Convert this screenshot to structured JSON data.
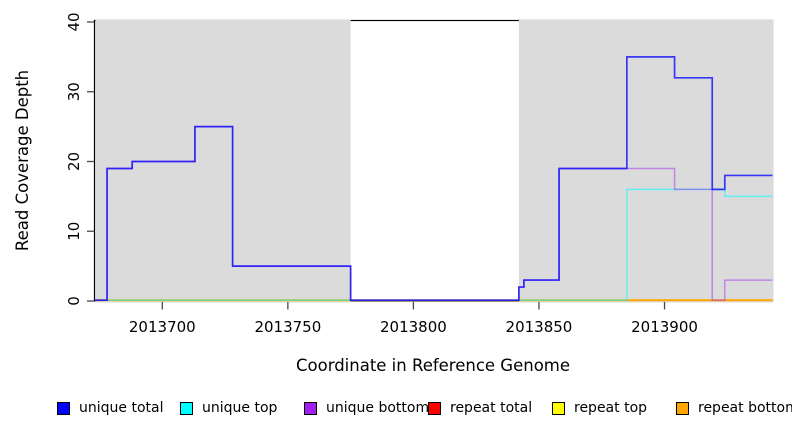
{
  "chart_data": {
    "type": "line",
    "subtype": "step-coverage-plot",
    "title": "",
    "xlabel": "Coordinate in Reference Genome",
    "ylabel": "Read Coverage Depth",
    "xlim": [
      2013673,
      2013943
    ],
    "ylim": [
      0,
      40
    ],
    "x_ticks": [
      "2013700",
      "2013750",
      "2013800",
      "2013850",
      "2013900"
    ],
    "x_tick_values": [
      2013700,
      2013750,
      2013800,
      2013850,
      2013900
    ],
    "y_ticks": [
      "0",
      "10",
      "20",
      "30",
      "40"
    ],
    "y_tick_values": [
      0,
      10,
      20,
      30,
      40
    ],
    "grid": false,
    "background_color": "#ffffff",
    "shaded_region_color": "#dbdbdb",
    "shaded_regions": [
      [
        2013673,
        2013775
      ],
      [
        2013842,
        2013943
      ]
    ],
    "series": [
      {
        "name": "repeat total",
        "color": "#ff0000",
        "opacity": 1,
        "stroke_width": 1.4,
        "points": [
          [
            2013673,
            0
          ],
          [
            2013943,
            0
          ]
        ]
      },
      {
        "name": "repeat top",
        "color": "#ffff00",
        "opacity": 1,
        "stroke_width": 1.4,
        "points": [
          [
            2013673,
            0
          ],
          [
            2013943,
            0
          ]
        ]
      },
      {
        "name": "repeat bottom",
        "color": "#ffa500",
        "opacity": 1,
        "stroke_width": 2,
        "points": [
          [
            2013673,
            0
          ],
          [
            2013943,
            0
          ]
        ]
      },
      {
        "name": "unique top",
        "color": "#00ffff",
        "opacity": 0.55,
        "stroke_width": 1.5,
        "points": [
          [
            2013673,
            0
          ],
          [
            2013885,
            16
          ],
          [
            2013924,
            15
          ],
          [
            2013943,
            15
          ]
        ]
      },
      {
        "name": "unique bottom",
        "color": "#a020f0",
        "opacity": 0.45,
        "stroke_width": 1.5,
        "points": [
          [
            2013673,
            0
          ],
          [
            2013678,
            19
          ],
          [
            2013688,
            20
          ],
          [
            2013713,
            25
          ],
          [
            2013728,
            5
          ],
          [
            2013775,
            0
          ],
          [
            2013842,
            2
          ],
          [
            2013844,
            3
          ],
          [
            2013858,
            19
          ],
          [
            2013904,
            16
          ],
          [
            2013919,
            0
          ],
          [
            2013924,
            3
          ],
          [
            2013943,
            3
          ]
        ]
      },
      {
        "name": "unique total",
        "color": "#0000ff",
        "opacity": 0.75,
        "stroke_width": 1.7,
        "points": [
          [
            2013673,
            0
          ],
          [
            2013678,
            19
          ],
          [
            2013688,
            20
          ],
          [
            2013713,
            25
          ],
          [
            2013728,
            5
          ],
          [
            2013775,
            0
          ],
          [
            2013842,
            2
          ],
          [
            2013844,
            3
          ],
          [
            2013858,
            19
          ],
          [
            2013885,
            35
          ],
          [
            2013904,
            32
          ],
          [
            2013919,
            16
          ],
          [
            2013924,
            18
          ],
          [
            2013943,
            18
          ]
        ]
      }
    ],
    "legend": {
      "position": "bottom",
      "items": [
        {
          "label": "unique total",
          "color": "#0000ff"
        },
        {
          "label": "unique top",
          "color": "#00ffff"
        },
        {
          "label": "unique bottom",
          "color": "#a020f0"
        },
        {
          "label": "repeat total",
          "color": "#ff0000"
        },
        {
          "label": "repeat top",
          "color": "#ffff00"
        },
        {
          "label": "repeat bottom",
          "color": "#ffa500"
        }
      ]
    }
  }
}
